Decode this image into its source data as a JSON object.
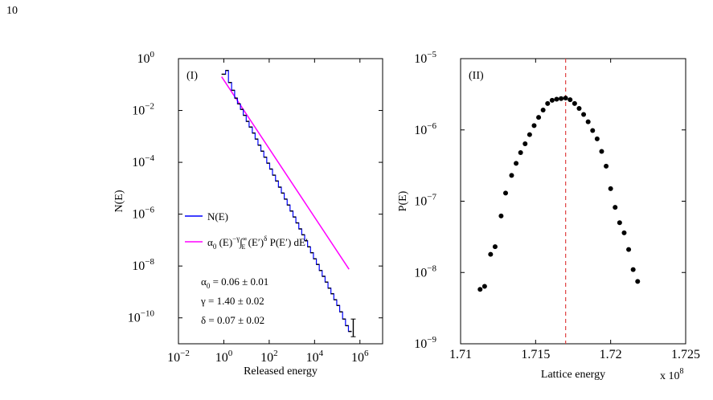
{
  "page_number": "10",
  "chart_data": [
    {
      "type": "line",
      "panel_label": "(I)",
      "xlabel": "Released energy",
      "ylabel": "N(E)",
      "x_scale": "log",
      "y_scale": "log",
      "xlim": [
        0.01,
        10000000
      ],
      "ylim": [
        1e-11,
        1
      ],
      "x_ticks": [
        {
          "value": 0.01,
          "base": "10",
          "exp": "−2"
        },
        {
          "value": 1,
          "base": "10",
          "exp": "0"
        },
        {
          "value": 100,
          "base": "10",
          "exp": "2"
        },
        {
          "value": 10000,
          "base": "10",
          "exp": "4"
        },
        {
          "value": 1000000,
          "base": "10",
          "exp": "6"
        }
      ],
      "y_ticks": [
        {
          "value": 1,
          "base": "10",
          "exp": "0"
        },
        {
          "value": 0.01,
          "base": "10",
          "exp": "−2"
        },
        {
          "value": 0.0001,
          "base": "10",
          "exp": "−4"
        },
        {
          "value": 1e-06,
          "base": "10",
          "exp": "−6"
        },
        {
          "value": 1e-08,
          "base": "10",
          "exp": "−8"
        },
        {
          "value": 1e-10,
          "base": "10",
          "exp": "−10"
        }
      ],
      "grid": false,
      "legend_position": "lower-left",
      "series": [
        {
          "name": "N(E)",
          "color": "#0000ff",
          "style": "step",
          "x": [
            0.8,
            1.2,
            1.6,
            2.2,
            3.0,
            4.0,
            5.4,
            7.2,
            9.7,
            13,
            18,
            24,
            32,
            43,
            58,
            78,
            105,
            140,
            190,
            255,
            343,
            460,
            620,
            830,
            1120,
            1500,
            2020,
            2720,
            3660,
            4920,
            6620,
            8900,
            12000,
            16100,
            21600,
            29100,
            39100,
            52600,
            70700,
            95000,
            128000,
            172000,
            231000,
            311000
          ],
          "y": [
            0.25,
            0.35,
            0.12,
            0.06,
            0.03,
            0.018,
            0.011,
            0.0065,
            0.0038,
            0.0023,
            0.00135,
            0.00079,
            0.00046,
            0.00027,
            0.000158,
            9.3e-05,
            5.5e-05,
            3.2e-05,
            1.9e-05,
            1.1e-05,
            6.5e-06,
            3.8e-06,
            2.25e-06,
            1.32e-06,
            7.8e-07,
            4.6e-07,
            2.7e-07,
            1.6e-07,
            9.4e-08,
            5.5e-08,
            3.25e-08,
            1.9e-08,
            1.15e-08,
            6.7e-09,
            4e-09,
            2.4e-09,
            1.4e-09,
            8.5e-10,
            5e-10,
            3e-10,
            1.7e-10,
            9e-11,
            5e-11,
            3e-11
          ]
        },
        {
          "name": "α0 (E)^−γ ∫E^∞ (E′)^δ P(E′) dE′",
          "color": "#ff00ff",
          "style": "line",
          "x": [
            0.8,
            330000
          ],
          "y": [
            0.2,
            7.5e-09
          ]
        }
      ],
      "annotations": [
        {
          "label": "α",
          "sub": "0",
          "rest": " = 0.06 ± 0.01"
        },
        {
          "label": "γ",
          "sub": "",
          "rest": " = 1.40 ± 0.02"
        },
        {
          "label": "δ",
          "sub": "",
          "rest": " = 0.07 ± 0.02"
        }
      ],
      "legend_text": {
        "n_e": "N(E)",
        "fit_alpha": "α",
        "fit_sub": "0",
        "fit_mid": " (E)",
        "fit_exp": "−γ",
        "fit_int": "∫",
        "fit_int_lower": "E",
        "fit_int_upper": "∞",
        "fit_prime": " (E′)",
        "fit_delta": "δ",
        "fit_tail": " P(E′) dE′"
      }
    },
    {
      "type": "scatter",
      "panel_label": "(II)",
      "xlabel": "Lattice energy",
      "ylabel": "P(E)",
      "x_multiplier": {
        "prefix": "x 10",
        "exp": "8"
      },
      "x_scale": "linear",
      "y_scale": "log",
      "xlim": [
        171000000,
        172500000
      ],
      "ylim": [
        1e-09,
        1e-05
      ],
      "x_ticks": [
        {
          "value": 171000000,
          "label": "1.71"
        },
        {
          "value": 171500000,
          "label": "1.715"
        },
        {
          "value": 172000000,
          "label": "1.72"
        },
        {
          "value": 172500000,
          "label": "1.725"
        }
      ],
      "y_ticks": [
        {
          "value": 1e-05,
          "base": "10",
          "exp": "−5"
        },
        {
          "value": 1e-06,
          "base": "10",
          "exp": "−6"
        },
        {
          "value": 1e-07,
          "base": "10",
          "exp": "−7"
        },
        {
          "value": 1e-08,
          "base": "10",
          "exp": "−8"
        },
        {
          "value": 1e-09,
          "base": "10",
          "exp": "−9"
        }
      ],
      "grid": false,
      "reference_line": {
        "x": 171700000,
        "color": "#e04040",
        "style": "dashed"
      },
      "series": [
        {
          "color": "#000000",
          "x": [
            171130000,
            171160000,
            171200000,
            171230000,
            171270000,
            171300000,
            171340000,
            171370000,
            171400000,
            171430000,
            171460000,
            171490000,
            171520000,
            171550000,
            171580000,
            171610000,
            171640000,
            171670000,
            171700000,
            171730000,
            171760000,
            171790000,
            171820000,
            171850000,
            171880000,
            171910000,
            171940000,
            171970000,
            172000000,
            172030000,
            172060000,
            172090000,
            172120000,
            172150000,
            172180000
          ],
          "y": [
            5.8e-09,
            6.4e-09,
            1.8e-08,
            2.3e-08,
            6.2e-08,
            1.3e-07,
            2.3e-07,
            3.4e-07,
            4.8e-07,
            6.4e-07,
            8.6e-07,
            1.15e-06,
            1.5e-06,
            1.9e-06,
            2.35e-06,
            2.6e-06,
            2.7e-06,
            2.75e-06,
            2.8e-06,
            2.65e-06,
            2.35e-06,
            2e-06,
            1.65e-06,
            1.3e-06,
            9.8e-07,
            7.5e-07,
            5e-07,
            3.1e-07,
            1.5e-07,
            8.2e-08,
            5e-08,
            3.6e-08,
            2.1e-08,
            1.1e-08,
            7.5e-09
          ]
        }
      ]
    }
  ]
}
